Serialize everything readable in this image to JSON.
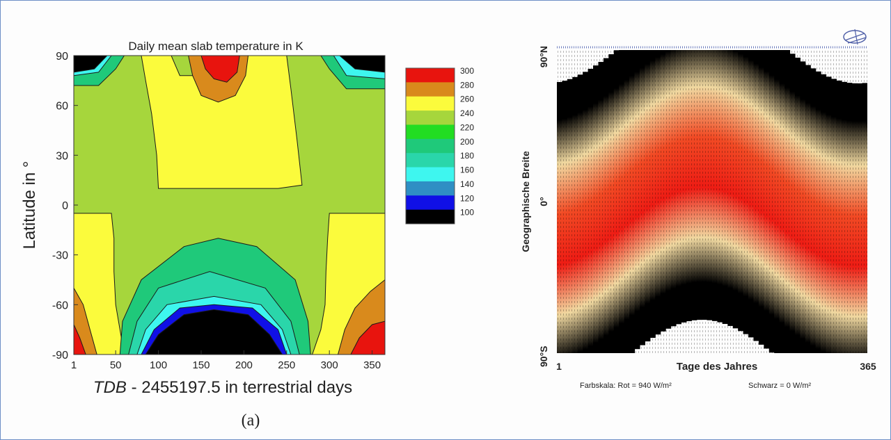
{
  "caption": "(a)",
  "chart_data": [
    {
      "type": "heatmap",
      "subtype": "filled-contour",
      "title": "Daily mean slab temperature in K",
      "xlabel_italic": "TDB",
      "xlabel_rest": " - 2455197.5 in terrestrial days",
      "ylabel": "Latitude in °",
      "xlim": [
        1,
        365
      ],
      "ylim": [
        -90,
        90
      ],
      "x_ticks": [
        1,
        50,
        100,
        150,
        200,
        250,
        300,
        350
      ],
      "y_ticks": [
        90,
        60,
        30,
        0,
        -30,
        -60,
        -90
      ],
      "colorbar": {
        "levels": [
          300,
          280,
          260,
          240,
          220,
          200,
          180,
          160,
          140,
          120,
          100
        ],
        "colors": [
          "#e8140e",
          "#d98a1c",
          "#fbfb3c",
          "#a6d63c",
          "#22dd22",
          "#1fc97a",
          "#2ad6aa",
          "#3ef6ef",
          "#2f8fc4",
          "#1010e6",
          "#000000"
        ]
      },
      "regions": [
        {
          "value": "240-260",
          "color": "#fbfb3c",
          "points": [
            [
              80,
              90
            ],
            [
              115,
              90
            ],
            [
              125,
              78
            ],
            [
              165,
              78
            ],
            [
              185,
              90
            ],
            [
              250,
              90
            ],
            [
              255,
              70
            ],
            [
              262,
              40
            ],
            [
              268,
              12
            ],
            [
              240,
              10
            ],
            [
              180,
              10
            ],
            [
              100,
              10
            ],
            [
              98,
              30
            ],
            [
              92,
              55
            ],
            [
              85,
              75
            ]
          ]
        },
        {
          "value": "260-280",
          "color": "#d98a1c",
          "points": [
            [
              135,
              90
            ],
            [
              205,
              90
            ],
            [
              202,
              78
            ],
            [
              190,
              66
            ],
            [
              170,
              62
            ],
            [
              150,
              66
            ],
            [
              140,
              78
            ]
          ]
        },
        {
          "value": "280-300",
          "color": "#e8140e",
          "points": [
            [
              150,
              90
            ],
            [
              195,
              90
            ],
            [
              192,
              80
            ],
            [
              180,
              74
            ],
            [
              165,
              76
            ],
            [
              155,
              82
            ]
          ]
        },
        {
          "value": "240-260",
          "color": "#fbfb3c",
          "points": [
            [
              1,
              -5
            ],
            [
              45,
              -5
            ],
            [
              48,
              -20
            ],
            [
              48,
              -40
            ],
            [
              50,
              -60
            ],
            [
              55,
              -75
            ],
            [
              60,
              -90
            ],
            [
              1,
              -90
            ]
          ]
        },
        {
          "value": "240-260",
          "color": "#fbfb3c",
          "points": [
            [
              300,
              -5
            ],
            [
              365,
              -5
            ],
            [
              365,
              -90
            ],
            [
              280,
              -90
            ],
            [
              290,
              -75
            ],
            [
              295,
              -60
            ],
            [
              296,
              -40
            ],
            [
              298,
              -20
            ]
          ]
        },
        {
          "value": "260-280",
          "color": "#d98a1c",
          "points": [
            [
              1,
              -50
            ],
            [
              12,
              -60
            ],
            [
              20,
              -75
            ],
            [
              28,
              -90
            ],
            [
              1,
              -90
            ]
          ]
        },
        {
          "value": "280-300",
          "color": "#e8140e",
          "points": [
            [
              1,
              -72
            ],
            [
              8,
              -80
            ],
            [
              15,
              -90
            ],
            [
              1,
              -90
            ]
          ]
        },
        {
          "value": "260-280",
          "color": "#d98a1c",
          "points": [
            [
              365,
              -45
            ],
            [
              365,
              -90
            ],
            [
              310,
              -90
            ],
            [
              318,
              -75
            ],
            [
              330,
              -62
            ],
            [
              348,
              -52
            ]
          ]
        },
        {
          "value": "280-300",
          "color": "#e8140e",
          "points": [
            [
              365,
              -70
            ],
            [
              365,
              -90
            ],
            [
              325,
              -90
            ],
            [
              335,
              -80
            ],
            [
              350,
              -72
            ]
          ]
        },
        {
          "value": "200-220",
          "color": "#1fc97a",
          "points": [
            [
              1,
              72
            ],
            [
              30,
              72
            ],
            [
              50,
              82
            ],
            [
              60,
              90
            ],
            [
              1,
              90
            ]
          ]
        },
        {
          "value": "160-180",
          "color": "#3ef6ef",
          "points": [
            [
              1,
              78
            ],
            [
              30,
              80
            ],
            [
              45,
              90
            ],
            [
              1,
              90
            ]
          ]
        },
        {
          "value": "100-120",
          "color": "#000000",
          "points": [
            [
              1,
              80
            ],
            [
              25,
              82
            ],
            [
              40,
              90
            ],
            [
              1,
              90
            ]
          ]
        },
        {
          "value": "200-220",
          "color": "#1fc97a",
          "points": [
            [
              365,
              70
            ],
            [
              320,
              70
            ],
            [
              300,
              82
            ],
            [
              290,
              90
            ],
            [
              365,
              90
            ]
          ]
        },
        {
          "value": "160-180",
          "color": "#3ef6ef",
          "points": [
            [
              365,
              76
            ],
            [
              320,
              78
            ],
            [
              305,
              90
            ],
            [
              365,
              90
            ]
          ]
        },
        {
          "value": "100-120",
          "color": "#000000",
          "points": [
            [
              365,
              80
            ],
            [
              330,
              82
            ],
            [
              312,
              90
            ],
            [
              365,
              90
            ]
          ]
        },
        {
          "value": "200-220",
          "color": "#1fc97a",
          "points": [
            [
              55,
              -90
            ],
            [
              58,
              -70
            ],
            [
              80,
              -45
            ],
            [
              130,
              -25
            ],
            [
              170,
              -20
            ],
            [
              215,
              -25
            ],
            [
              260,
              -45
            ],
            [
              275,
              -70
            ],
            [
              278,
              -90
            ]
          ]
        },
        {
          "value": "180-200",
          "color": "#2ad6aa",
          "points": [
            [
              65,
              -90
            ],
            [
              75,
              -70
            ],
            [
              100,
              -50
            ],
            [
              160,
              -40
            ],
            [
              225,
              -50
            ],
            [
              255,
              -70
            ],
            [
              265,
              -90
            ]
          ]
        },
        {
          "value": "160-180",
          "color": "#3ef6ef",
          "points": [
            [
              75,
              -90
            ],
            [
              85,
              -75
            ],
            [
              110,
              -60
            ],
            [
              165,
              -55
            ],
            [
              220,
              -60
            ],
            [
              245,
              -75
            ],
            [
              255,
              -90
            ]
          ]
        },
        {
          "value": "100-120",
          "color": "#1010e6",
          "points": [
            [
              80,
              -90
            ],
            [
              95,
              -75
            ],
            [
              125,
              -62
            ],
            [
              165,
              -60
            ],
            [
              210,
              -62
            ],
            [
              240,
              -75
            ],
            [
              250,
              -90
            ]
          ]
        },
        {
          "value": "100",
          "color": "#000000",
          "points": [
            [
              85,
              -90
            ],
            [
              100,
              -78
            ],
            [
              130,
              -66
            ],
            [
              165,
              -63
            ],
            [
              205,
              -66
            ],
            [
              230,
              -78
            ],
            [
              245,
              -90
            ]
          ]
        }
      ]
    },
    {
      "type": "heatmap",
      "subtype": "insolation",
      "xlabel": "Tage des Jahres",
      "ylabel": "Geographische Breite",
      "x_tick_left": "1",
      "x_tick_right": "365",
      "y_tick_top": "90°N",
      "y_tick_middle": "0°",
      "y_tick_bottom": "90°S",
      "legend_text_1": "Farbskala:  Rot = 940 W/m²",
      "legend_text_2": "Schwarz = 0 W/m²",
      "scale_red": 940,
      "scale_black": 0,
      "scale_unit": "W/m²",
      "xlim": [
        1,
        365
      ],
      "ylim": [
        -90,
        90
      ]
    }
  ]
}
